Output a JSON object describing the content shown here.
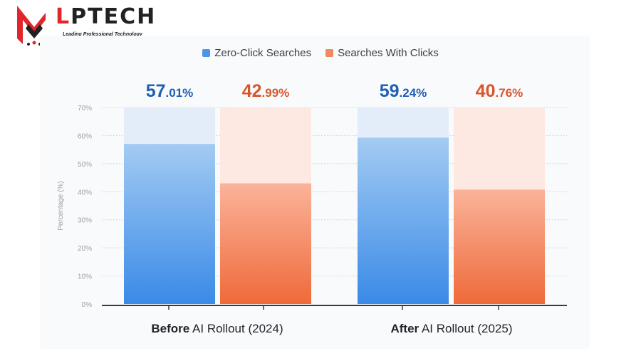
{
  "brand": {
    "name_first": "L",
    "name_rest": "PTECH",
    "tagline": "Leading Professional Technology",
    "colors": {
      "red": "#e0262b",
      "dark": "#222222"
    },
    "icon": "lp-monogram-icon"
  },
  "chart_data": {
    "type": "bar",
    "categories": [
      "Before AI Rollout (2024)",
      "After AI Rollout (2025)"
    ],
    "category_labels": [
      {
        "bold": "Before",
        "rest": " AI Rollout (2024)"
      },
      {
        "bold": "After",
        "rest": " AI Rollout (2025)"
      }
    ],
    "series": [
      {
        "name": "Zero-Click Searches",
        "values": [
          57.01,
          59.24
        ],
        "color": "#3b8de6",
        "label_color": "#1f5fb4"
      },
      {
        "name": "Searches With Clicks",
        "values": [
          42.99,
          40.76
        ],
        "color": "#f07a4f",
        "label_color": "#d9562a"
      }
    ],
    "value_labels": [
      [
        {
          "big": "57",
          "small": ".01%"
        },
        {
          "big": "59",
          "small": ".24%"
        }
      ],
      [
        {
          "big": "42",
          "small": ".99%"
        },
        {
          "big": "40",
          "small": ".76%"
        }
      ]
    ],
    "ylabel": "Percentage (%)",
    "ylim": [
      0,
      70
    ],
    "yticks": [
      0,
      10,
      20,
      30,
      40,
      50,
      60,
      70
    ],
    "ytick_labels": [
      "0%",
      "10%",
      "20%",
      "30%",
      "40%",
      "50%",
      "60%",
      "70%"
    ],
    "grid": true,
    "legend": "top-center"
  }
}
